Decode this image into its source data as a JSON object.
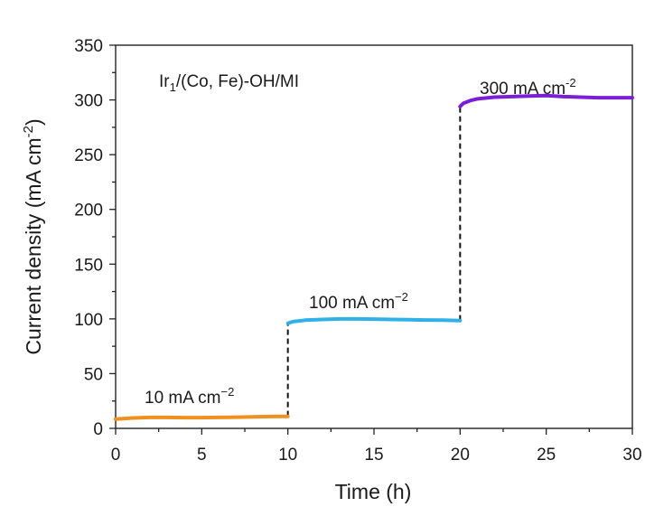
{
  "chart_data": {
    "type": "line",
    "title": "",
    "xlabel": "Time (h)",
    "ylabel": "Current density (mA cm",
    "ylabel_sup": "-2",
    "ylabel_end": ")",
    "xlim": [
      0,
      30
    ],
    "ylim": [
      0,
      350
    ],
    "xticks": [
      0,
      5,
      10,
      15,
      20,
      25,
      30
    ],
    "yticks": [
      0,
      50,
      100,
      150,
      200,
      250,
      300,
      350
    ],
    "grid": false,
    "sample_label": {
      "main": "Ir",
      "sub": "1",
      "rest": "/(Co, Fe)-OH/MI"
    },
    "series": [
      {
        "color": "#f0901f",
        "label_main": "10 mA cm",
        "label_sup": "−2",
        "x": [
          0,
          1,
          2,
          3,
          4,
          5,
          6,
          7,
          8,
          9,
          10
        ],
        "y": [
          8.5,
          9.5,
          10,
          10,
          9.8,
          9.8,
          10,
          10.2,
          10.5,
          10.8,
          11
        ]
      },
      {
        "color": "#2fb0e6",
        "label_main": "100 mA cm",
        "label_sup": "−2",
        "x": [
          10,
          10.3,
          11,
          12,
          13,
          14,
          15,
          16,
          17,
          18,
          19,
          20
        ],
        "y": [
          96,
          97.5,
          98.8,
          99.5,
          100,
          100,
          99.8,
          99.5,
          99.2,
          99,
          98.8,
          98.5
        ]
      },
      {
        "color": "#7a1fd6",
        "label_main": "300 mA cm",
        "label_sup": "-2",
        "x": [
          20,
          20.2,
          20.6,
          21,
          22,
          23,
          24,
          25,
          26,
          27,
          28,
          29,
          30
        ],
        "y": [
          294,
          297,
          299.5,
          301,
          302.5,
          303,
          303.5,
          304,
          303,
          302.5,
          302,
          302,
          302
        ]
      }
    ],
    "transitions": [
      {
        "x": 10,
        "y_from": 11,
        "y_to": 96
      },
      {
        "x": 20,
        "y_from": 98.5,
        "y_to": 294
      }
    ]
  }
}
